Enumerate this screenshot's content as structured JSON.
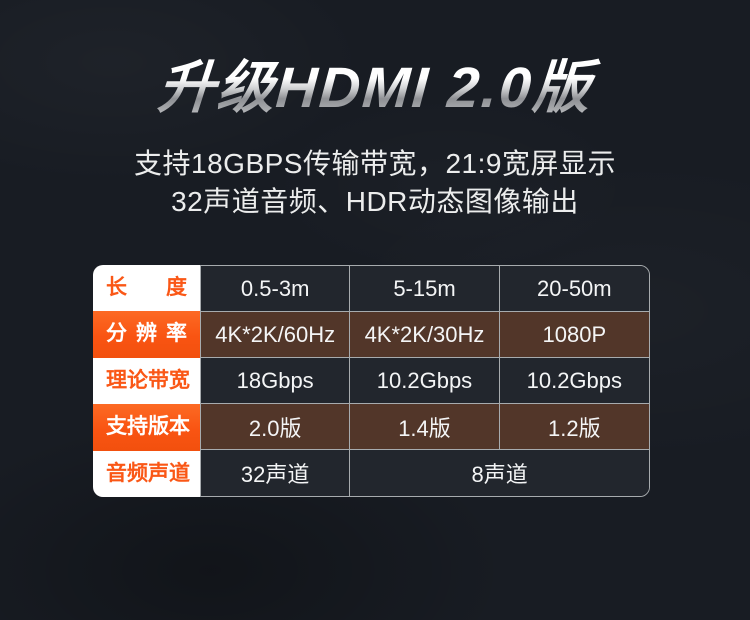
{
  "header": {
    "title": "升级HDMI 2.0版",
    "subtitle_line1": "支持18GBPS传输带宽，21:9宽屏显示",
    "subtitle_line2": "32声道音频、HDR动态图像输出"
  },
  "colors": {
    "page_background": "#181c23",
    "accent_orange": "#fa5716",
    "label_column_white": "#ffffff",
    "value_cell_dark": "#22262d",
    "value_cell_brown": "#523629",
    "cell_border_gray": "#a7abae",
    "title_silver_top": "#ffffff",
    "title_silver_bottom": "#8e9094",
    "subtitle_text": "#eceded"
  },
  "table": {
    "rows": [
      {
        "label": "长度",
        "style": "light",
        "values": [
          "0.5-3m",
          "5-15m",
          "20-50m"
        ]
      },
      {
        "label": "分辨率",
        "style": "orange",
        "values": [
          "4K*2K/60Hz",
          "4K*2K/30Hz",
          "1080P"
        ]
      },
      {
        "label": "理论带宽",
        "style": "light",
        "values": [
          "18Gbps",
          "10.2Gbps",
          "10.2Gbps"
        ]
      },
      {
        "label": "支持版本",
        "style": "orange",
        "values": [
          "2.0版",
          "1.4版",
          "1.2版"
        ]
      },
      {
        "label": "音频声道",
        "style": "light",
        "values": [
          "32声道",
          "8声道"
        ],
        "merged_last_cell_spans_columns": "2-3"
      }
    ]
  }
}
